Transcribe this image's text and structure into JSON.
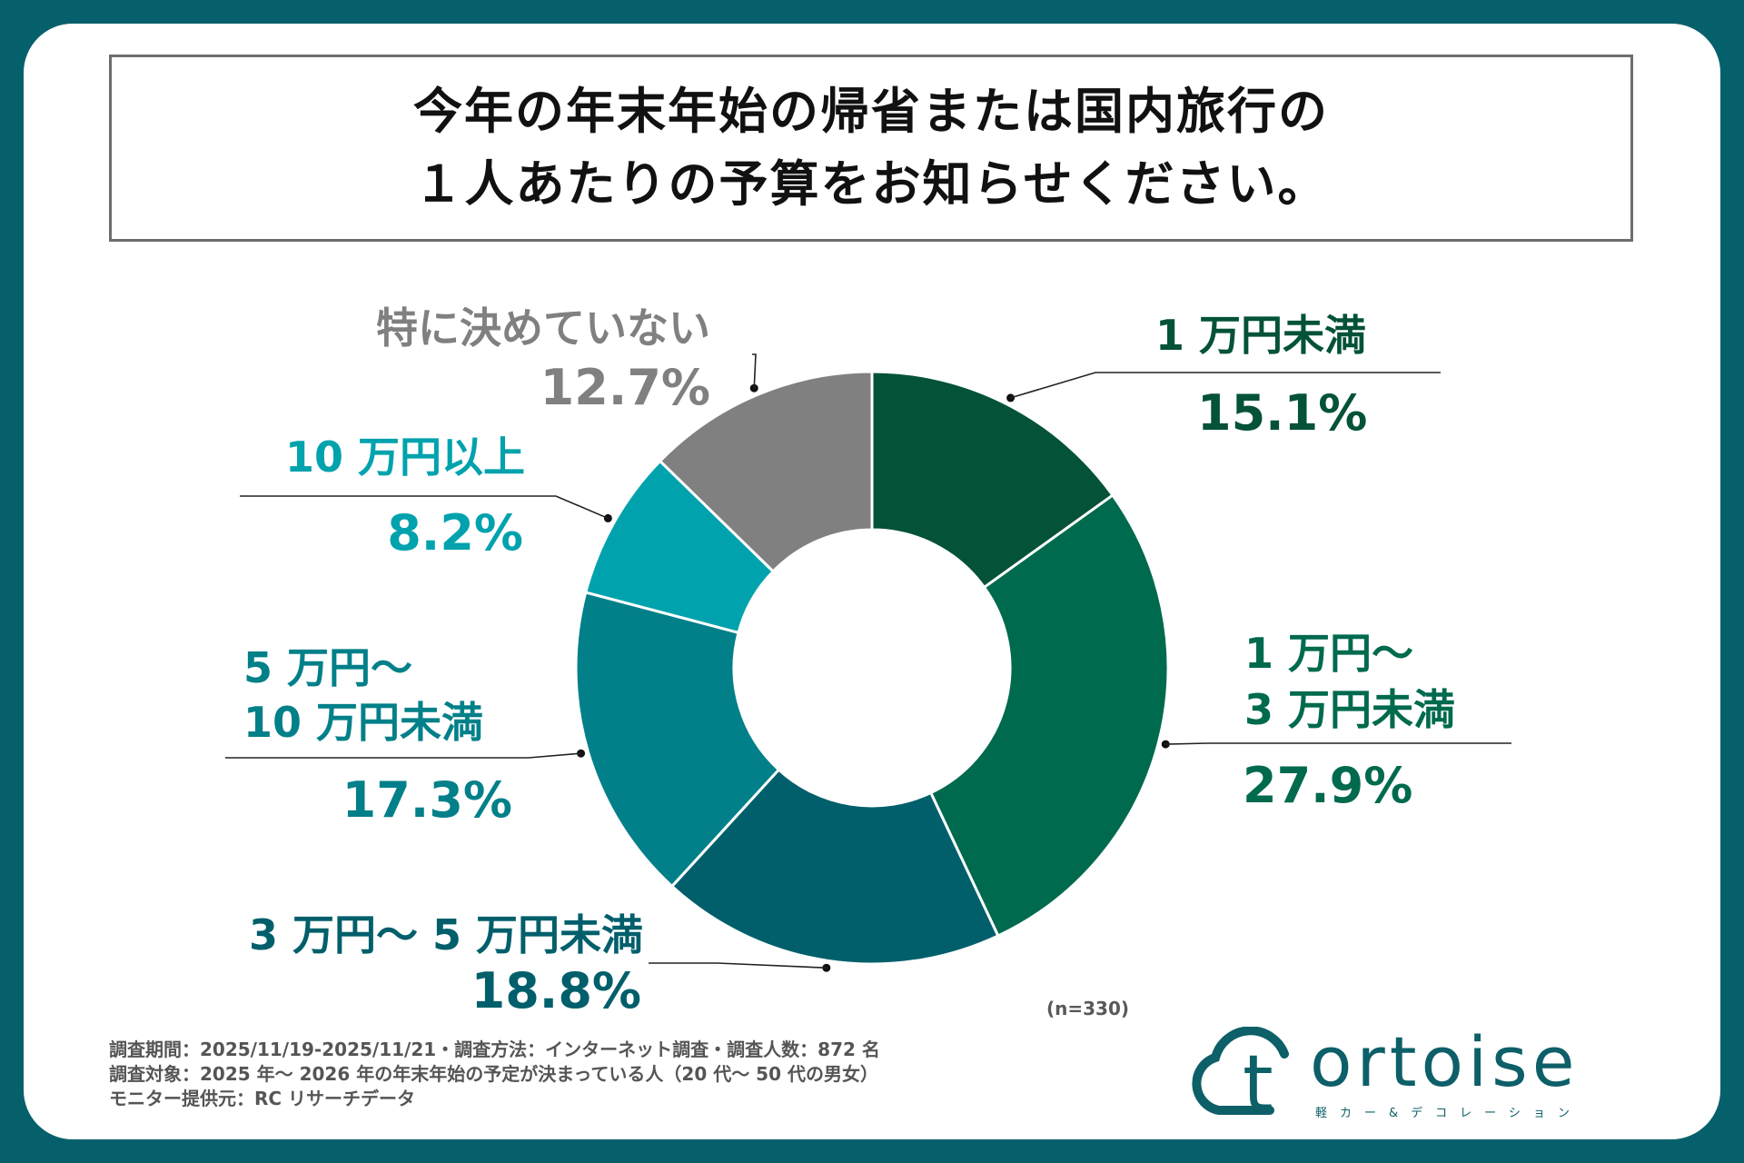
{
  "title": {
    "line1": "今年の年末年始の帰省または国内旅行の",
    "line2": "１人あたりの予算をお知らせください。"
  },
  "labels": {
    "s1": {
      "cat": "1 万円未満",
      "pct": "15.1%"
    },
    "s2": {
      "cat1": "1 万円〜",
      "cat2": "3 万円未満",
      "pct": "27.9%"
    },
    "s3": {
      "cat": "3 万円〜 5 万円未満",
      "pct": "18.8%"
    },
    "s4": {
      "cat1": "5 万円〜",
      "cat2": "10 万円未満",
      "pct": "17.3%"
    },
    "s5": {
      "cat": "10 万円以上",
      "pct": "8.2%"
    },
    "s6": {
      "cat": "特に決めていない",
      "pct": "12.7%"
    }
  },
  "sample_note": "(n=330)",
  "footer": {
    "line1": "調査期間：2025/11/19-2025/11/21・調査方法：インターネット調査・調査人数：872 名",
    "line2": "調査対象：2025 年〜 2026 年の年末年始の予定が決まっている人（20 代〜 50 代の男女）",
    "line3": "モニター提供元：RC リサーチデータ"
  },
  "logo": {
    "icon_letter": "t",
    "word": "ortoise",
    "sub": "軽カー&デコレーション",
    "color": "#0d5f68"
  },
  "colors": {
    "background": "#05606b",
    "card": "#ffffff"
  },
  "chart_data": {
    "type": "pie",
    "donut": true,
    "title": "今年の年末年始の帰省または国内旅行の１人あたりの予算をお知らせください。",
    "n": 330,
    "categories": [
      "1 万円未満",
      "1 万円〜3 万円未満",
      "3 万円〜 5 万円未満",
      "5 万円〜10 万円未満",
      "10 万円以上",
      "特に決めていない"
    ],
    "values": [
      15.1,
      27.9,
      18.8,
      17.3,
      8.2,
      12.7
    ],
    "colors": [
      "#045238",
      "#006a4e",
      "#005f6b",
      "#028089",
      "#00a2ad",
      "#808080"
    ],
    "label_colors": [
      "#045238",
      "#006a4e",
      "#005f6b",
      "#028089",
      "#00a2ad",
      "#808080"
    ],
    "start_angle_deg": 0,
    "direction": "clockwise"
  }
}
